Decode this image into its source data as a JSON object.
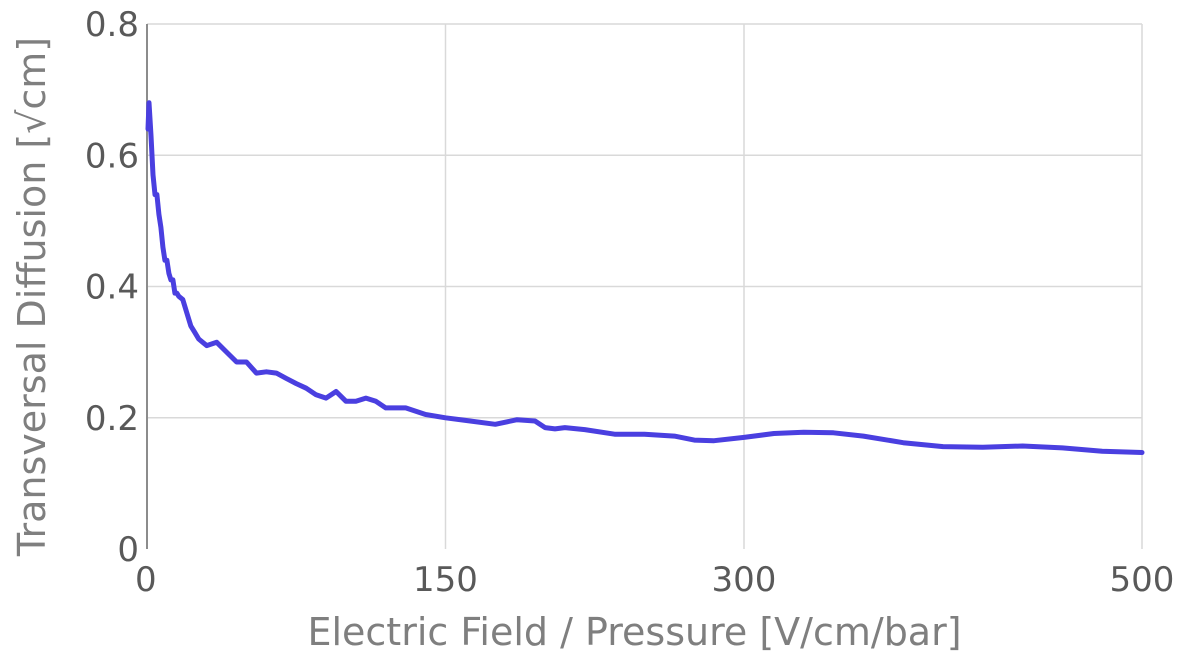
{
  "chart_data": {
    "type": "line",
    "xlabel": "Electric Field / Pressure [V/cm/bar]",
    "ylabel": "Transversal Diffusion [√cm]",
    "xlim": [
      0,
      500
    ],
    "ylim": [
      0,
      0.8
    ],
    "x_ticks": [
      "0",
      "150",
      "300",
      "500"
    ],
    "y_ticks": [
      "0",
      "0.2",
      "0.4",
      "0.6",
      "0.8"
    ],
    "grid": true,
    "series": [
      {
        "color": "#4a3fe0",
        "x": [
          0.5,
          1,
          2,
          3,
          4,
          5,
          6,
          7,
          8,
          9,
          10,
          11,
          12,
          13,
          14,
          15,
          16,
          18,
          20,
          22,
          24,
          26,
          28,
          30,
          35,
          40,
          45,
          50,
          55,
          60,
          65,
          70,
          75,
          80,
          85,
          90,
          95,
          100,
          105,
          110,
          115,
          120,
          125,
          130,
          140,
          150,
          160,
          175,
          186,
          195,
          200,
          205,
          210,
          220,
          235,
          250,
          265,
          275,
          285,
          300,
          315,
          330,
          345,
          360,
          380,
          400,
          420,
          440,
          460,
          480,
          500
        ],
        "y": [
          0.64,
          0.68,
          0.63,
          0.57,
          0.54,
          0.54,
          0.51,
          0.49,
          0.46,
          0.44,
          0.44,
          0.42,
          0.41,
          0.41,
          0.39,
          0.39,
          0.385,
          0.38,
          0.36,
          0.34,
          0.33,
          0.32,
          0.315,
          0.31,
          0.315,
          0.3,
          0.285,
          0.285,
          0.268,
          0.27,
          0.268,
          0.26,
          0.252,
          0.245,
          0.235,
          0.23,
          0.24,
          0.225,
          0.225,
          0.23,
          0.225,
          0.215,
          0.215,
          0.215,
          0.205,
          0.2,
          0.196,
          0.19,
          0.197,
          0.195,
          0.185,
          0.183,
          0.185,
          0.182,
          0.175,
          0.175,
          0.172,
          0.166,
          0.165,
          0.17,
          0.176,
          0.178,
          0.177,
          0.172,
          0.162,
          0.156,
          0.155,
          0.157,
          0.154,
          0.149,
          0.147
        ]
      }
    ]
  }
}
